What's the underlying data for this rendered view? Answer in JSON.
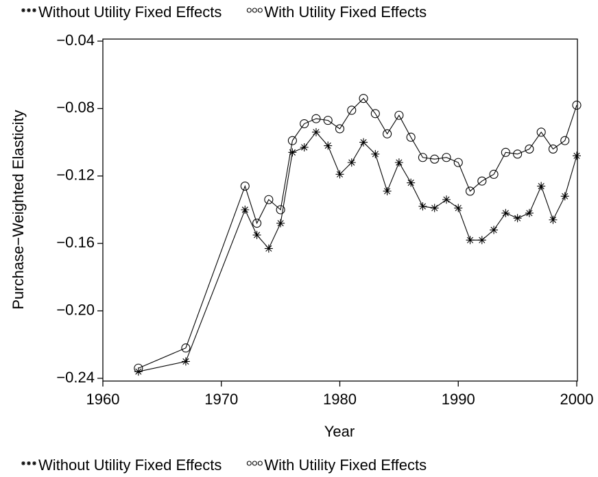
{
  "chart_data": {
    "type": "line",
    "x_label": "Year",
    "y_label": "Purchase−Weighted Elasticity",
    "x": [
      1963,
      1967,
      1972,
      1973,
      1974,
      1975,
      1976,
      1977,
      1978,
      1979,
      1980,
      1981,
      1982,
      1983,
      1984,
      1985,
      1986,
      1987,
      1988,
      1989,
      1990,
      1991,
      1992,
      1993,
      1994,
      1995,
      1996,
      1997,
      1998,
      1999,
      2000
    ],
    "series": [
      {
        "name": "Without Utility Fixed Effects",
        "color": "#000000",
        "marker": "star",
        "values": [
          -0.236,
          -0.23,
          -0.14,
          -0.155,
          -0.163,
          -0.148,
          -0.106,
          -0.103,
          -0.094,
          -0.102,
          -0.119,
          -0.112,
          -0.1,
          -0.107,
          -0.129,
          -0.112,
          -0.124,
          -0.138,
          -0.139,
          -0.134,
          -0.139,
          -0.158,
          -0.158,
          -0.152,
          -0.142,
          -0.145,
          -0.142,
          -0.126,
          -0.146,
          -0.132,
          -0.108
        ]
      },
      {
        "name": "With Utility Fixed Effects",
        "color": "#000000",
        "marker": "circle",
        "values": [
          -0.234,
          -0.222,
          -0.126,
          -0.148,
          -0.134,
          -0.14,
          -0.099,
          -0.089,
          -0.086,
          -0.087,
          -0.092,
          -0.081,
          -0.074,
          -0.083,
          -0.095,
          -0.084,
          -0.097,
          -0.109,
          -0.11,
          -0.109,
          -0.112,
          -0.129,
          -0.123,
          -0.119,
          -0.106,
          -0.107,
          -0.104,
          -0.094,
          -0.104,
          -0.099,
          -0.078
        ]
      }
    ],
    "xlim": [
      1960,
      2000
    ],
    "xticks": [
      1960,
      1970,
      1980,
      1990,
      2000
    ],
    "ylim": [
      -0.24,
      -0.04
    ],
    "yticks": [
      {
        "value": -0.24,
        "label": "−0.24"
      },
      {
        "value": -0.2,
        "label": "−0.20"
      },
      {
        "value": -0.16,
        "label": "−0.16"
      },
      {
        "value": -0.12,
        "label": "−0.12"
      },
      {
        "value": -0.08,
        "label": "−0.08"
      },
      {
        "value": -0.04,
        "label": "−0.04"
      }
    ],
    "legend": "top-and-bottom",
    "grid": false
  }
}
